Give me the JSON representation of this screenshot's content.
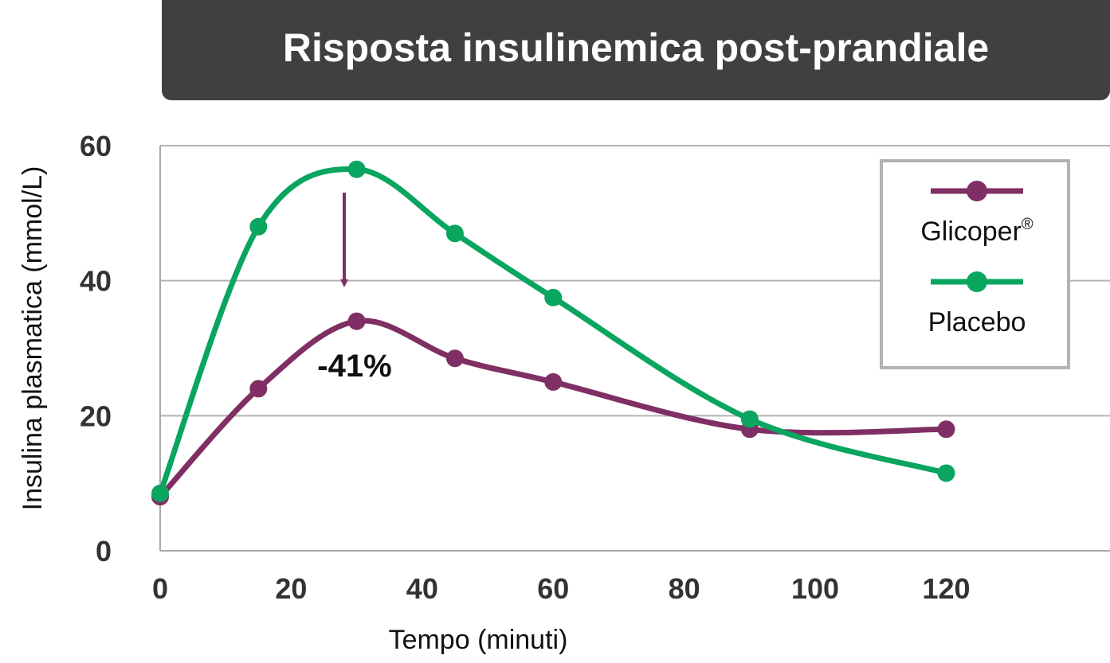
{
  "chart_data": {
    "type": "line",
    "title": "Risposta insulinemica post-prandiale",
    "xlabel": "Tempo (minuti)",
    "ylabel": "Insulina plasmatica (mmol/L)",
    "xlim": [
      0,
      145
    ],
    "ylim": [
      0,
      60
    ],
    "xticks": [
      0,
      20,
      40,
      60,
      80,
      100,
      120
    ],
    "yticks": [
      0,
      20,
      40,
      60
    ],
    "grid": "horizontal",
    "legend_position": "top-right",
    "series": [
      {
        "name": "Glicoper",
        "name_sup": "®",
        "color": "#7F2F63",
        "x": [
          0,
          15,
          30,
          45,
          60,
          90,
          120
        ],
        "y": [
          8,
          24,
          34,
          28.5,
          25,
          18,
          18
        ]
      },
      {
        "name": "Placebo",
        "color": "#0AA55F",
        "x": [
          0,
          15,
          30,
          45,
          60,
          90,
          120
        ],
        "y": [
          8.5,
          48,
          56.5,
          47,
          37.5,
          19.5,
          11.5
        ]
      }
    ],
    "annotations": [
      {
        "text": "-41%",
        "x": 30,
        "y": 30
      }
    ]
  }
}
